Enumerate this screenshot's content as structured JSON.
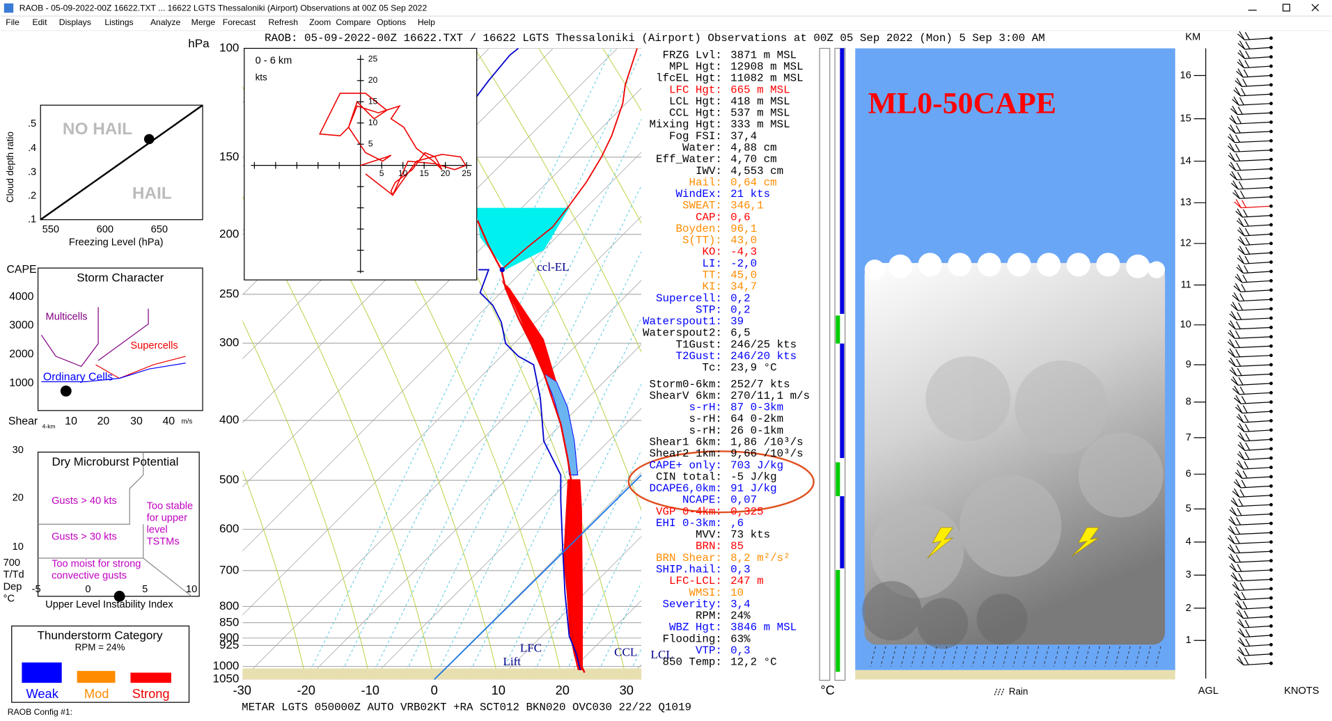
{
  "window": {
    "title": "RAOB  -  05-09-2022-00Z 16622.TXT  ...  16622 LGTS Thessaloniki (Airport) Observations at 00Z 05 Sep 2022"
  },
  "menu": [
    "File",
    "Edit",
    "Displays",
    "Listings",
    "Analyze",
    "Merge",
    "Forecast",
    "Refresh",
    "Zoom",
    "Compare",
    "Options",
    "Help"
  ],
  "header": "RAOB:  05-09-2022-00Z 16622.TXT / 16622 LGTS Thessaloniki (Airport) Observations at 00Z 05 Sep 2022 (Mon) 5 Sep 3:00 AM",
  "hail_chart": {
    "y_label": "Cloud depth ratio",
    "y_ticks": [
      ".5",
      ".4",
      ".3",
      ".2",
      ".1"
    ],
    "x_ticks": [
      "550",
      "600",
      "650"
    ],
    "x_label": "Freezing Level (hPa)",
    "upper_label": "NO HAIL",
    "lower_label": "HAIL"
  },
  "storm_character": {
    "title": "Storm Character",
    "y_label": "CAPE",
    "y_ticks": [
      "4000",
      "3000",
      "2000",
      "1000"
    ],
    "x_label": "Shear",
    "x_sub": "4-km",
    "x_ticks": [
      "10",
      "20",
      "30",
      "40"
    ],
    "x_unit": "m/s",
    "regions": [
      "Multicells",
      "Supercells",
      "Ordinary Cells"
    ]
  },
  "microburst": {
    "title": "Dry Microburst Potential",
    "y_ticks": [
      "30",
      "20",
      "10"
    ],
    "gusts_40": "Gusts > 40 kts",
    "gusts_30": "Gusts > 30 kts",
    "too_stable": [
      "Too stable",
      "for upper",
      "level",
      "TSTMs"
    ],
    "too_moist": [
      "Too moist for strong",
      "convective gusts"
    ],
    "y_label": [
      "700",
      "T/Td",
      "Dep",
      "°C"
    ],
    "x_ticks": [
      "-5",
      "0",
      "5",
      "10"
    ],
    "x_label": "Upper Level Instability Index"
  },
  "thunderstorm": {
    "title": "Thunderstorm Category",
    "rpm": "RPM = 24%",
    "categories": [
      "Weak",
      "Mod",
      "Strong"
    ]
  },
  "config": "RAOB Config #1:",
  "skewt": {
    "p_unit": "hPa",
    "pressures": [
      "100",
      "150",
      "200",
      "250",
      "300",
      "400",
      "500",
      "600",
      "700",
      "800",
      "850",
      "900",
      "925",
      "1000",
      "1050"
    ],
    "temps": [
      "-30",
      "-20",
      "-10",
      "0",
      "10",
      "20",
      "30"
    ],
    "t_unit": "°C",
    "ccl_el": "ccl-EL",
    "lfc": "LFC",
    "ccl": "CCL",
    "lcl": "LCL",
    "lift": "Lift"
  },
  "hodograph": {
    "title": "0 - 6 km",
    "unit": "kts",
    "v_ticks": [
      "25",
      "20",
      "15",
      "10",
      "5"
    ],
    "h_ticks": [
      "5",
      "10",
      "15",
      "20",
      "25"
    ]
  },
  "metar": "METAR LGTS 050000Z AUTO VRB02KT +RA SCT012 BKN020 OVC030 22/22 Q1019",
  "parameters": {
    "groups": [
      [
        {
          "label": "FRZG Lvl:",
          "value": "3871 m MSL",
          "color": "#000000"
        },
        {
          "label": "MPL Hgt:",
          "value": "12908 m MSL",
          "color": "#000000"
        },
        {
          "label": "lfcEL Hgt:",
          "value": "11082 m MSL",
          "color": "#000000"
        },
        {
          "label": "LFC Hgt:",
          "value": "665 m MSL",
          "color": "#ff0000"
        },
        {
          "label": "LCL Hgt:",
          "value": "418 m MSL",
          "color": "#000000"
        },
        {
          "label": "CCL Hgt:",
          "value": "537 m MSL",
          "color": "#000000"
        },
        {
          "label": "Mixing Hgt:",
          "value": "333 m MSL",
          "color": "#000000"
        },
        {
          "label": "Fog FSI:",
          "value": "37,4",
          "color": "#000000"
        },
        {
          "label": "Water:",
          "value": "4,88 cm",
          "color": "#000000"
        },
        {
          "label": "Eff_Water:",
          "value": "4,70 cm",
          "color": "#000000"
        },
        {
          "label": "IWV:",
          "value": "4,553 cm",
          "color": "#000000"
        },
        {
          "label": "Hail:",
          "value": "0,64 cm",
          "color": "#ff8c00"
        },
        {
          "label": "WindEx:",
          "value": "21 kts",
          "color": "#0000ff"
        },
        {
          "label": "SWEAT:",
          "value": "346,1",
          "color": "#ff8c00"
        },
        {
          "label": "CAP:",
          "value": "0,6",
          "color": "#ff0000"
        },
        {
          "label": "Boyden:",
          "value": "96,1",
          "color": "#ff8c00"
        },
        {
          "label": "S(TT):",
          "value": "43,0",
          "color": "#ff8c00"
        },
        {
          "label": "KO:",
          "value": "-4,3",
          "color": "#ff0000"
        },
        {
          "label": "LI:",
          "value": "-2,0",
          "color": "#0000ff"
        },
        {
          "label": "TT:",
          "value": "45,0",
          "color": "#ff8c00"
        },
        {
          "label": "KI:",
          "value": "34,7",
          "color": "#ff8c00"
        },
        {
          "label": "Supercell:",
          "value": "0,2",
          "color": "#0000ff"
        },
        {
          "label": "STP:",
          "value": "0,2",
          "color": "#0000ff"
        },
        {
          "label": "Waterspout1:",
          "value": "39",
          "color": "#0000ff"
        },
        {
          "label": "Waterspout2:",
          "value": "6,5",
          "color": "#000000"
        },
        {
          "label": "T1Gust:",
          "value": "246/25 kts",
          "color": "#000000"
        },
        {
          "label": "T2Gust:",
          "value": "246/20 kts",
          "color": "#0000ff"
        },
        {
          "label": "Tc:",
          "value": "23,9 °C",
          "color": "#000000"
        }
      ],
      [
        {
          "label": "Storm0-6km:",
          "value": "252/7 kts",
          "color": "#000000"
        },
        {
          "label": "ShearV 6km:",
          "value": "270/11,1 m/s",
          "color": "#000000"
        },
        {
          "label": "s-rH:",
          "value": "87  0-3km",
          "color": "#0000ff"
        },
        {
          "label": "s-rH:",
          "value": "64  0-2km",
          "color": "#000000"
        },
        {
          "label": "s-rH:",
          "value": "26  0-1km",
          "color": "#000000"
        },
        {
          "label": "Shear1 6km:",
          "value": "1,86 /10³/s",
          "color": "#000000"
        },
        {
          "label": "Shear2 1km:",
          "value": "9,66 /10³/s",
          "color": "#000000"
        },
        {
          "label": "CAPE+ only:",
          "value": "703 J/kg",
          "color": "#0000ff"
        },
        {
          "label": "CIN total:",
          "value": "-5 J/kg",
          "color": "#000000"
        },
        {
          "label": "DCAPE6,0km:",
          "value": "91 J/kg",
          "color": "#0000ff"
        },
        {
          "label": "NCAPE:",
          "value": "0,07",
          "color": "#0000ff"
        },
        {
          "label": "VGP 0-4km:",
          "value": "0,325",
          "color": "#ff0000"
        },
        {
          "label": "EHI 0-3km:",
          "value": ",6",
          "color": "#0000ff"
        },
        {
          "label": "MVV:",
          "value": "73 kts",
          "color": "#000000"
        },
        {
          "label": "BRN:",
          "value": "85",
          "color": "#ff0000"
        },
        {
          "label": "BRN Shear:",
          "value": "8,2 m²/s²",
          "color": "#ff8c00"
        },
        {
          "label": "SHIP.hail:",
          "value": "0,3",
          "color": "#0000ff"
        },
        {
          "label": "LFC-LCL:",
          "value": "247 m",
          "color": "#ff0000"
        },
        {
          "label": "WMSI:",
          "value": "10",
          "color": "#ff8c00"
        },
        {
          "label": "Severity:",
          "value": "3,4",
          "color": "#0000ff"
        },
        {
          "label": "RPM:",
          "value": "24%",
          "color": "#000000"
        },
        {
          "label": "WBZ Hgt:",
          "value": "3846 m MSL",
          "color": "#0000ff"
        },
        {
          "label": "Flooding:",
          "value": "63%",
          "color": "#000000"
        },
        {
          "label": "VTP:",
          "value": "0,3",
          "color": "#0000ff"
        },
        {
          "label": "850 Temp:",
          "value": "12,2 °C",
          "color": "#000000"
        }
      ]
    ]
  },
  "cloud": {
    "title": "ML0-50CAPE",
    "rain": "Rain",
    "km_label": "KM",
    "km_ticks": [
      "16",
      "15",
      "14",
      "13",
      "12",
      "11",
      "10",
      "9",
      "8",
      "7",
      "6",
      "5",
      "4",
      "3",
      "2",
      "1"
    ],
    "agl": "AGL",
    "knots": "KNOTS"
  }
}
